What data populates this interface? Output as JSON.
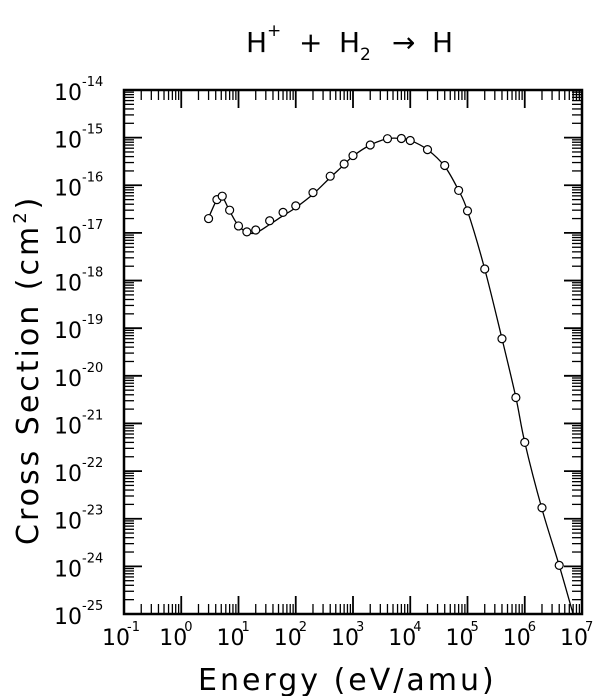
{
  "chart_data": {
    "type": "line",
    "title": {
      "main": "H",
      "main_sup": "+",
      "plus": "+",
      "reactant": "H",
      "reactant_sub": "2",
      "arrow": "→",
      "product": "H"
    },
    "xlabel": "Energy (eV/amu)",
    "ylabel": {
      "text": "Cross Section (cm",
      "sup": "2",
      "close": ")"
    },
    "x_scale": "log",
    "y_scale": "log",
    "xlim": [
      0.1,
      10000000
    ],
    "ylim": [
      1e-25,
      1e-14
    ],
    "x_ticks": [
      {
        "base": "10",
        "exp": "-1",
        "value": 0.1
      },
      {
        "base": "10",
        "exp": "0",
        "value": 1
      },
      {
        "base": "10",
        "exp": "1",
        "value": 10
      },
      {
        "base": "10",
        "exp": "2",
        "value": 100
      },
      {
        "base": "10",
        "exp": "3",
        "value": 1000
      },
      {
        "base": "10",
        "exp": "4",
        "value": 10000
      },
      {
        "base": "10",
        "exp": "5",
        "value": 100000
      },
      {
        "base": "10",
        "exp": "6",
        "value": 1000000
      },
      {
        "base": "10",
        "exp": "7",
        "value": 10000000
      }
    ],
    "y_ticks": [
      {
        "base": "10",
        "exp": "-14",
        "value": 1e-14
      },
      {
        "base": "10",
        "exp": "-15",
        "value": 1e-15
      },
      {
        "base": "10",
        "exp": "-16",
        "value": 1e-16
      },
      {
        "base": "10",
        "exp": "-17",
        "value": 1e-17
      },
      {
        "base": "10",
        "exp": "-18",
        "value": 1e-18
      },
      {
        "base": "10",
        "exp": "-19",
        "value": 1e-19
      },
      {
        "base": "10",
        "exp": "-20",
        "value": 1e-20
      },
      {
        "base": "10",
        "exp": "-21",
        "value": 1e-21
      },
      {
        "base": "10",
        "exp": "-22",
        "value": 1e-22
      },
      {
        "base": "10",
        "exp": "-23",
        "value": 1e-23
      },
      {
        "base": "10",
        "exp": "-24",
        "value": 1e-24
      },
      {
        "base": "10",
        "exp": "-25",
        "value": 1e-25
      }
    ],
    "grid": false,
    "series": [
      {
        "points": [
          [
            3.0,
            2e-17
          ],
          [
            4.2,
            5e-17
          ],
          [
            5.2,
            5.9e-17
          ],
          [
            7.0,
            3e-17
          ],
          [
            10,
            1.4e-17
          ],
          [
            14,
            1.05e-17
          ],
          [
            20,
            1.15e-17
          ],
          [
            35,
            1.8e-17
          ],
          [
            60,
            2.7e-17
          ],
          [
            100,
            3.7e-17
          ],
          [
            200,
            7e-17
          ],
          [
            400,
            1.55e-16
          ],
          [
            700,
            2.8e-16
          ],
          [
            1000,
            4.2e-16
          ],
          [
            2000,
            7e-16
          ],
          [
            4000,
            9.5e-16
          ],
          [
            7000,
            9.6e-16
          ],
          [
            10000,
            8.7e-16
          ],
          [
            20000,
            5.6e-16
          ],
          [
            40000,
            2.6e-16
          ],
          [
            70000,
            7.8e-17
          ],
          [
            100000,
            2.9e-17
          ],
          [
            200000,
            1.75e-18
          ],
          [
            400000,
            6e-20
          ],
          [
            700000,
            3.5e-21
          ],
          [
            1000000,
            4e-22
          ],
          [
            2000000,
            1.7e-23
          ],
          [
            4000000,
            1.05e-24
          ]
        ],
        "curve": [
          [
            3.0,
            2.1e-17
          ],
          [
            4.2,
            5e-17
          ],
          [
            5.2,
            5.7e-17
          ],
          [
            7.0,
            2.9e-17
          ],
          [
            10,
            1.4e-17
          ],
          [
            14,
            1.05e-17
          ],
          [
            20,
            1e-17
          ],
          [
            35,
            1.5e-17
          ],
          [
            60,
            2.3e-17
          ],
          [
            100,
            3.4e-17
          ],
          [
            200,
            6.5e-17
          ],
          [
            400,
            1.45e-16
          ],
          [
            700,
            2.7e-16
          ],
          [
            1000,
            4.1e-16
          ],
          [
            2000,
            7e-16
          ],
          [
            4000,
            9.5e-16
          ],
          [
            7000,
            9.6e-16
          ],
          [
            10000,
            8.8e-16
          ],
          [
            20000,
            5.6e-16
          ],
          [
            40000,
            2.5e-16
          ],
          [
            70000,
            7.8e-17
          ],
          [
            100000,
            2.9e-17
          ],
          [
            200000,
            1.75e-18
          ],
          [
            400000,
            6e-20
          ],
          [
            700000,
            3.5e-21
          ],
          [
            1000000,
            4e-22
          ],
          [
            2000000,
            1.6e-23
          ],
          [
            4000000,
            1.05e-24
          ],
          [
            7000000,
            1e-25
          ]
        ]
      }
    ]
  }
}
